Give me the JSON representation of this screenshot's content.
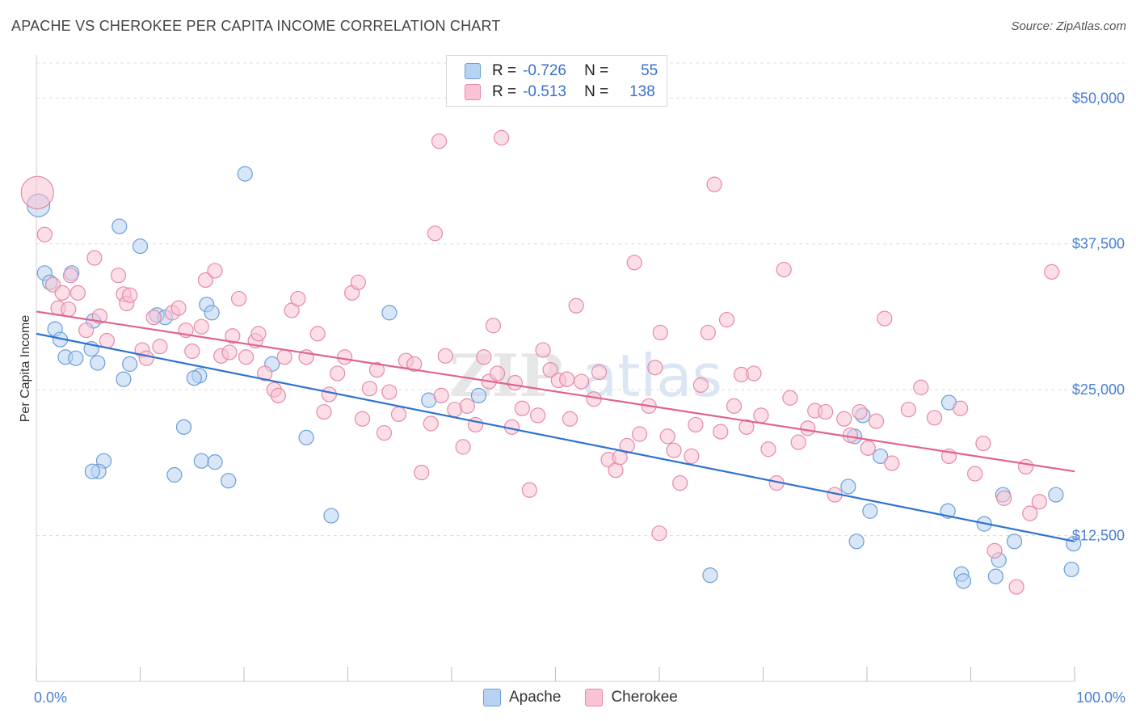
{
  "title": "APACHE VS CHEROKEE PER CAPITA INCOME CORRELATION CHART",
  "source": "Source: ZipAtlas.com",
  "watermark": "ZIPatlas",
  "colors": {
    "apache_fill": "#b8d2f3",
    "apache_stroke": "#6a9fd8",
    "apache_line": "#2f72d0",
    "cherokee_fill": "#f9c3d3",
    "cherokee_stroke": "#e58aa7",
    "cherokee_line": "#e0638c",
    "tick_text": "#4a7fd4",
    "grid": "#dcdcdc"
  },
  "legend": {
    "rows": [
      {
        "series": "Apache",
        "r_label": "R =",
        "r_value": "-0.726",
        "n_label": "N =",
        "n_value": "55"
      },
      {
        "series": "Cherokee",
        "r_label": "R =",
        "r_value": "-0.513",
        "n_label": "N =",
        "n_value": "138"
      }
    ]
  },
  "bottom_legend": [
    "Apache",
    "Cherokee"
  ],
  "chart_data": {
    "type": "scatter",
    "title": "APACHE VS CHEROKEE PER CAPITA INCOME CORRELATION CHART",
    "xlabel": "",
    "ylabel": "Per Capita Income",
    "xlim": [
      0,
      100
    ],
    "ylim": [
      0,
      53000
    ],
    "x_tick_labels": [
      "0.0%",
      "100.0%"
    ],
    "y_ticks": [
      12500,
      25000,
      37500,
      50000
    ],
    "y_tick_labels": [
      "$12,500",
      "$25,000",
      "$37,500",
      "$50,000"
    ],
    "grid": true,
    "legend_position": "top-center",
    "series": [
      {
        "name": "Apache",
        "trend": {
          "x": [
            0,
            100
          ],
          "y": [
            29800,
            12000
          ]
        },
        "points": [
          [
            0.2,
            40800
          ],
          [
            0.8,
            35000
          ],
          [
            1.3,
            34200
          ],
          [
            3.4,
            35000
          ],
          [
            1.8,
            30200
          ],
          [
            2.3,
            29300
          ],
          [
            2.8,
            27800
          ],
          [
            3.8,
            27700
          ],
          [
            5.5,
            30900
          ],
          [
            5.3,
            28500
          ],
          [
            5.9,
            27300
          ],
          [
            8.0,
            39000
          ],
          [
            10.0,
            37300
          ],
          [
            9.0,
            27200
          ],
          [
            8.4,
            25900
          ],
          [
            11.6,
            31400
          ],
          [
            12.4,
            31200
          ],
          [
            16.4,
            32300
          ],
          [
            16.9,
            31600
          ],
          [
            15.7,
            26200
          ],
          [
            15.2,
            26000
          ],
          [
            14.2,
            21800
          ],
          [
            6.5,
            18900
          ],
          [
            6.0,
            18000
          ],
          [
            5.4,
            18000
          ],
          [
            15.9,
            18900
          ],
          [
            17.2,
            18800
          ],
          [
            13.3,
            17700
          ],
          [
            18.5,
            17200
          ],
          [
            20.1,
            43500
          ],
          [
            22.7,
            27200
          ],
          [
            26.0,
            20900
          ],
          [
            28.4,
            14200
          ],
          [
            34.0,
            31600
          ],
          [
            37.8,
            24100
          ],
          [
            42.6,
            24500
          ],
          [
            64.9,
            9100
          ],
          [
            78.8,
            21000
          ],
          [
            79.6,
            22800
          ],
          [
            78.2,
            16700
          ],
          [
            81.3,
            19300
          ],
          [
            80.3,
            14600
          ],
          [
            79.0,
            12000
          ],
          [
            87.9,
            23900
          ],
          [
            87.8,
            14600
          ],
          [
            91.3,
            13500
          ],
          [
            89.1,
            9200
          ],
          [
            89.3,
            8600
          ],
          [
            93.1,
            16000
          ],
          [
            92.7,
            10400
          ],
          [
            92.4,
            9000
          ],
          [
            94.2,
            12000
          ],
          [
            98.2,
            16000
          ],
          [
            99.7,
            9600
          ],
          [
            99.9,
            11800
          ]
        ]
      },
      {
        "name": "Cherokee",
        "trend": {
          "x": [
            0,
            100
          ],
          "y": [
            31700,
            18000
          ]
        },
        "points": [
          [
            0.1,
            41900
          ],
          [
            0.8,
            38300
          ],
          [
            1.6,
            34000
          ],
          [
            2.5,
            33300
          ],
          [
            2.1,
            32000
          ],
          [
            3.3,
            34800
          ],
          [
            3.1,
            31900
          ],
          [
            4.0,
            33300
          ],
          [
            4.8,
            30100
          ],
          [
            5.6,
            36300
          ],
          [
            6.1,
            31300
          ],
          [
            6.8,
            29200
          ],
          [
            7.9,
            34800
          ],
          [
            8.4,
            33200
          ],
          [
            8.7,
            32400
          ],
          [
            9.0,
            33100
          ],
          [
            10.2,
            28400
          ],
          [
            10.6,
            27700
          ],
          [
            11.3,
            31200
          ],
          [
            11.9,
            28700
          ],
          [
            13.1,
            31600
          ],
          [
            13.7,
            32000
          ],
          [
            14.4,
            30100
          ],
          [
            15.0,
            28300
          ],
          [
            15.9,
            30400
          ],
          [
            16.3,
            34400
          ],
          [
            17.2,
            35200
          ],
          [
            17.8,
            27900
          ],
          [
            18.6,
            28200
          ],
          [
            18.9,
            29600
          ],
          [
            19.5,
            32800
          ],
          [
            20.2,
            27800
          ],
          [
            21.1,
            29200
          ],
          [
            21.4,
            29800
          ],
          [
            22.0,
            26400
          ],
          [
            22.9,
            25000
          ],
          [
            23.3,
            24500
          ],
          [
            23.9,
            27800
          ],
          [
            24.6,
            31800
          ],
          [
            25.2,
            32800
          ],
          [
            26.0,
            27800
          ],
          [
            27.1,
            29800
          ],
          [
            27.7,
            23100
          ],
          [
            28.2,
            24600
          ],
          [
            29.0,
            26400
          ],
          [
            29.7,
            27800
          ],
          [
            30.4,
            33300
          ],
          [
            31.0,
            34200
          ],
          [
            31.4,
            22500
          ],
          [
            32.1,
            25100
          ],
          [
            32.8,
            26700
          ],
          [
            33.5,
            21300
          ],
          [
            34.0,
            24800
          ],
          [
            34.9,
            22900
          ],
          [
            35.6,
            27500
          ],
          [
            36.4,
            27200
          ],
          [
            37.1,
            17900
          ],
          [
            38.0,
            22100
          ],
          [
            38.4,
            38400
          ],
          [
            38.8,
            46300
          ],
          [
            39.0,
            24500
          ],
          [
            39.4,
            27900
          ],
          [
            40.3,
            23300
          ],
          [
            41.1,
            20100
          ],
          [
            41.5,
            23600
          ],
          [
            42.3,
            22000
          ],
          [
            43.1,
            27800
          ],
          [
            43.6,
            25700
          ],
          [
            44.0,
            30500
          ],
          [
            44.4,
            26400
          ],
          [
            44.8,
            46600
          ],
          [
            45.8,
            21800
          ],
          [
            46.1,
            25600
          ],
          [
            46.8,
            23400
          ],
          [
            47.5,
            16400
          ],
          [
            48.3,
            22800
          ],
          [
            48.8,
            28400
          ],
          [
            49.5,
            26700
          ],
          [
            50.3,
            25800
          ],
          [
            51.1,
            25900
          ],
          [
            51.4,
            22500
          ],
          [
            52.0,
            32200
          ],
          [
            52.5,
            25700
          ],
          [
            53.7,
            24200
          ],
          [
            54.2,
            26500
          ],
          [
            55.1,
            19000
          ],
          [
            55.8,
            18100
          ],
          [
            56.2,
            19200
          ],
          [
            56.9,
            20200
          ],
          [
            57.6,
            35900
          ],
          [
            58.1,
            21200
          ],
          [
            59.0,
            23600
          ],
          [
            59.6,
            26900
          ],
          [
            60.1,
            29900
          ],
          [
            60.8,
            21000
          ],
          [
            61.4,
            19800
          ],
          [
            62.0,
            17000
          ],
          [
            63.1,
            19300
          ],
          [
            63.5,
            22000
          ],
          [
            64.0,
            25400
          ],
          [
            64.7,
            29900
          ],
          [
            65.3,
            42600
          ],
          [
            65.9,
            21400
          ],
          [
            66.5,
            31000
          ],
          [
            67.2,
            23600
          ],
          [
            67.9,
            26300
          ],
          [
            68.4,
            21800
          ],
          [
            69.1,
            26400
          ],
          [
            69.8,
            22800
          ],
          [
            70.5,
            19900
          ],
          [
            71.3,
            17000
          ],
          [
            72.0,
            35300
          ],
          [
            72.6,
            24300
          ],
          [
            73.4,
            20500
          ],
          [
            74.3,
            21700
          ],
          [
            75.0,
            23200
          ],
          [
            76.0,
            23100
          ],
          [
            76.9,
            16000
          ],
          [
            77.8,
            22500
          ],
          [
            78.4,
            21100
          ],
          [
            79.3,
            23100
          ],
          [
            80.1,
            20000
          ],
          [
            80.9,
            22300
          ],
          [
            81.7,
            31100
          ],
          [
            82.4,
            18700
          ],
          [
            84.0,
            23300
          ],
          [
            85.2,
            25200
          ],
          [
            86.5,
            22600
          ],
          [
            87.9,
            19300
          ],
          [
            89.0,
            23400
          ],
          [
            90.4,
            17800
          ],
          [
            91.2,
            20400
          ],
          [
            92.3,
            11200
          ],
          [
            93.2,
            15700
          ],
          [
            94.4,
            8100
          ],
          [
            95.7,
            14400
          ],
          [
            96.6,
            15400
          ],
          [
            97.8,
            35100
          ],
          [
            95.3,
            18400
          ],
          [
            60.0,
            12700
          ]
        ]
      }
    ]
  }
}
